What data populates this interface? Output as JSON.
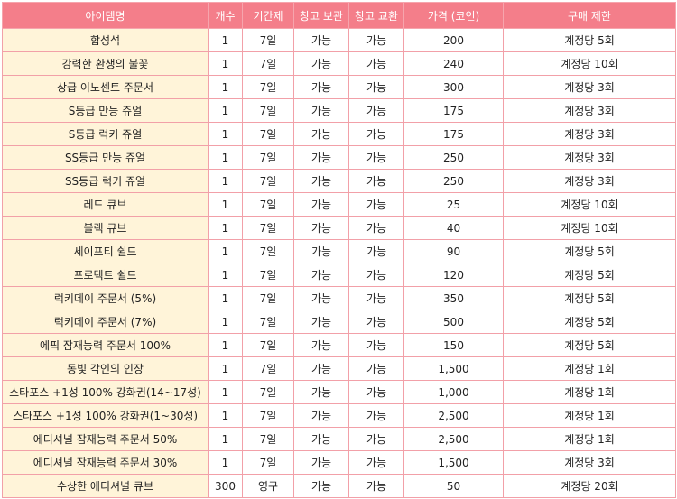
{
  "headers": [
    "아이템명",
    "개수",
    "기간제",
    "창고 보관",
    "창고 교환",
    "가격 (코인)",
    "구매 제한"
  ],
  "rows": [
    [
      "합성석",
      "1",
      "7일",
      "가능",
      "가능",
      "200",
      "계정당 5회"
    ],
    [
      "강력한 환생의 불꽃",
      "1",
      "7일",
      "가능",
      "가능",
      "240",
      "계정당 10회"
    ],
    [
      "상급 이노센트 주문서",
      "1",
      "7일",
      "가능",
      "가능",
      "300",
      "계정당 3회"
    ],
    [
      "S등급 만능 쥬얼",
      "1",
      "7일",
      "가능",
      "가능",
      "175",
      "계정당 3회"
    ],
    [
      "S등급 럭키 쥬얼",
      "1",
      "7일",
      "가능",
      "가능",
      "175",
      "계정당 3회"
    ],
    [
      "SS등급 만능 쥬얼",
      "1",
      "7일",
      "가능",
      "가능",
      "250",
      "계정당 3회"
    ],
    [
      "SS등급 럭키 쥬얼",
      "1",
      "7일",
      "가능",
      "가능",
      "250",
      "계정당 3회"
    ],
    [
      "레드 큐브",
      "1",
      "7일",
      "가능",
      "가능",
      "25",
      "계정당 10회"
    ],
    [
      "블랙 큐브",
      "1",
      "7일",
      "가능",
      "가능",
      "40",
      "계정당 10회"
    ],
    [
      "세이프티 쉴드",
      "1",
      "7일",
      "가능",
      "가능",
      "90",
      "계정당 5회"
    ],
    [
      "프로텍트 쉴드",
      "1",
      "7일",
      "가능",
      "가능",
      "120",
      "계정당 5회"
    ],
    [
      "럭키데이 주문서 (5%)",
      "1",
      "7일",
      "가능",
      "가능",
      "350",
      "계정당 5회"
    ],
    [
      "럭키데이 주문서 (7%)",
      "1",
      "7일",
      "가능",
      "가능",
      "500",
      "계정당 5회"
    ],
    [
      "에픽 잠재능력 주문서 100%",
      "1",
      "7일",
      "가능",
      "가능",
      "150",
      "계정당 5회"
    ],
    [
      "동빛 각인의 인장",
      "1",
      "7일",
      "가능",
      "가능",
      "1,500",
      "계정당 1회"
    ],
    [
      "스타포스 +1성 100% 강화권(14~17성)",
      "1",
      "7일",
      "가능",
      "가능",
      "1,000",
      "계정당 1회"
    ],
    [
      "스타포스 +1성 100% 강화권(1~30성)",
      "1",
      "7일",
      "가능",
      "가능",
      "2,500",
      "계정당 1회"
    ],
    [
      "에디셔널 잠재능력 주문서 50%",
      "1",
      "7일",
      "가능",
      "가능",
      "2,500",
      "계정당 1회"
    ],
    [
      "에디셔널 잠재능력 주문서 30%",
      "1",
      "7일",
      "가능",
      "가능",
      "1,500",
      "계정당 3회"
    ],
    [
      "수상한 에디셔널 큐브",
      "300",
      "영구",
      "가능",
      "가능",
      "50",
      "계정당 20회"
    ]
  ]
}
